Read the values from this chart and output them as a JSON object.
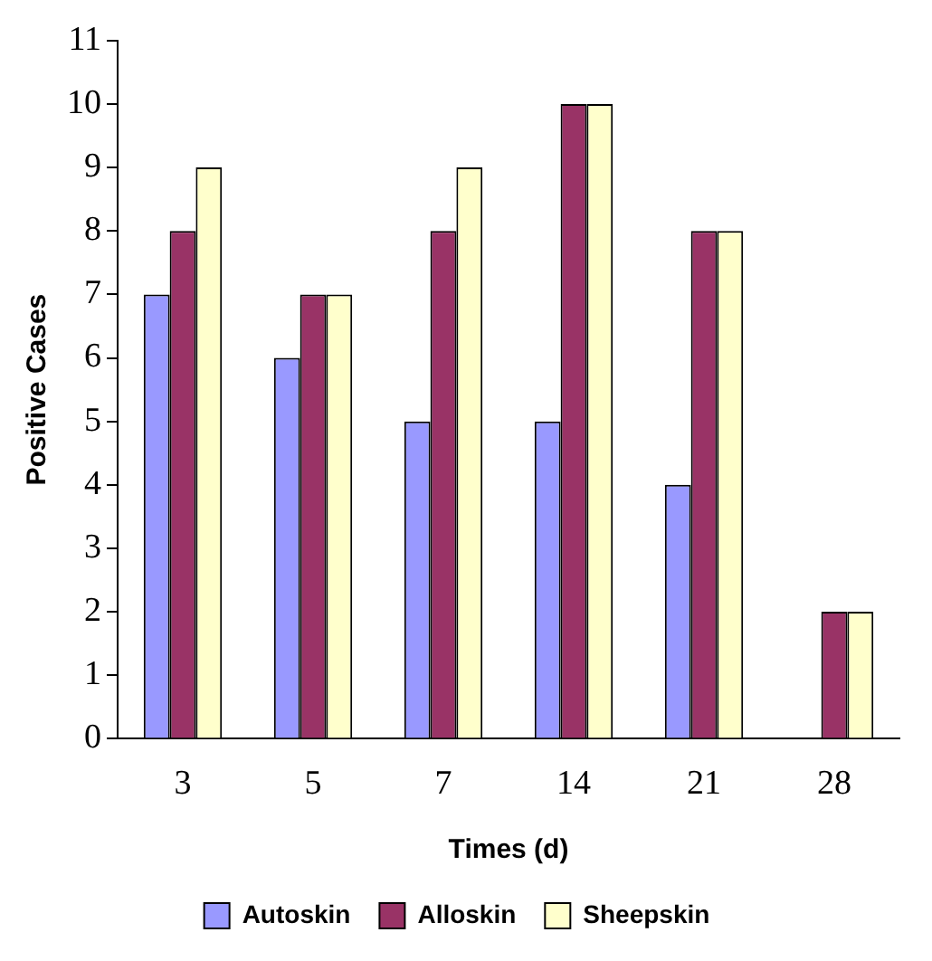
{
  "chart_data": {
    "type": "bar",
    "xlabel": "Times (d)",
    "ylabel": "Positive Cases",
    "categories": [
      "3",
      "5",
      "7",
      "14",
      "21",
      "28"
    ],
    "series": [
      {
        "name": "Autoskin",
        "color": "#9999ff",
        "values": [
          7,
          6,
          5,
          5,
          4,
          0
        ]
      },
      {
        "name": "Alloskin",
        "color": "#993366",
        "values": [
          8,
          7,
          8,
          10,
          8,
          2
        ]
      },
      {
        "name": "Sheepskin",
        "color": "#ffffcc",
        "values": [
          9,
          7,
          9,
          10,
          8,
          2
        ]
      }
    ],
    "ylim": [
      0,
      11
    ],
    "yticks": [
      0,
      1,
      2,
      3,
      4,
      5,
      6,
      7,
      8,
      9,
      10,
      11
    ],
    "grid": false,
    "legend": "bottom"
  }
}
